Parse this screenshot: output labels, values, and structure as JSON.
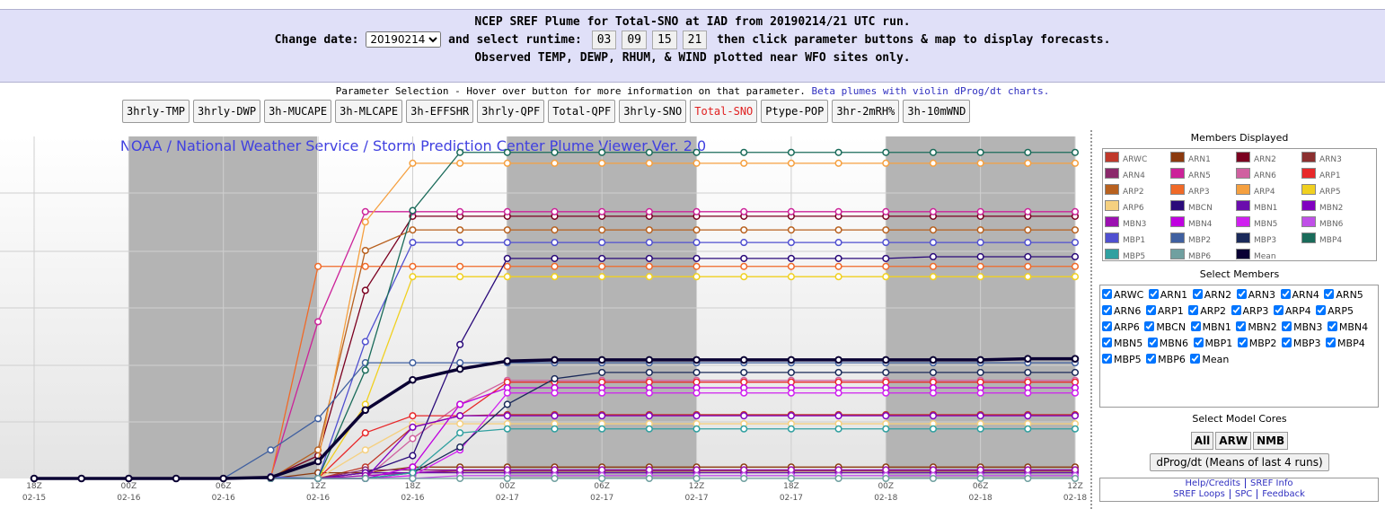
{
  "header": {
    "line1": "NCEP SREF Plume for Total-SNO at IAD from 20190214/21 UTC run.",
    "change_date_label": "Change date:",
    "date": "20190214",
    "select_runtime": "and select runtime:",
    "runtimes": [
      "03",
      "09",
      "15",
      "21"
    ],
    "then": "then click parameter buttons & map to display forecasts.",
    "line3": "Observed TEMP, DEWP, RHUM, & WIND plotted near WFO sites only."
  },
  "params": {
    "caption": "Parameter Selection - Hover over button for more information on that parameter.",
    "beta_link": "Beta plumes with violin dProg/dt charts.",
    "buttons": [
      "3hrly-TMP",
      "3hrly-DWP",
      "3h-MUCAPE",
      "3h-MLCAPE",
      "3h-EFFSHR",
      "3hrly-QPF",
      "Total-QPF",
      "3hrly-SNO",
      "Total-SNO",
      "Ptype-POP",
      "3hr-2mRH%",
      "3h-10mWND"
    ],
    "selected": 8
  },
  "chart_data": {
    "type": "line",
    "title": "NOAA / National Weather Service / Storm Prediction Center Plume Viewer Ver. 2.0",
    "categories": [
      "18Z",
      null,
      "00Z",
      null,
      "06Z",
      null,
      "12Z",
      null,
      "18Z",
      null,
      "00Z",
      null,
      "06Z",
      null,
      "12Z",
      null,
      "18Z",
      null,
      "00Z",
      null,
      "06Z",
      null,
      "12Z"
    ],
    "dates": [
      "02-15",
      null,
      "02-16",
      null,
      "02-16",
      null,
      "02-16",
      null,
      "02-16",
      null,
      "02-17",
      null,
      "02-17",
      null,
      "02-17",
      null,
      "02-17",
      null,
      "02-18",
      null,
      "02-18",
      null,
      "02-18"
    ],
    "ylim": [
      0,
      6
    ],
    "grid": true,
    "series": [
      {
        "name": "ARWC",
        "color": "#c0392b",
        "values": [
          0,
          0,
          0,
          0,
          0,
          0,
          0,
          0.2,
          0.9,
          1.1,
          1.12,
          1.12,
          1.12,
          1.12,
          1.12,
          1.12,
          1.12,
          1.12,
          1.12,
          1.12,
          1.12,
          1.12,
          1.12
        ]
      },
      {
        "name": "ARN1",
        "color": "#8b3a0f",
        "values": [
          0,
          0,
          0,
          0,
          0,
          0,
          0.1,
          0.1,
          0.2,
          0.2,
          0.2,
          0.2,
          0.2,
          0.2,
          0.2,
          0.2,
          0.2,
          0.2,
          0.2,
          0.2,
          0.2,
          0.2,
          0.2
        ]
      },
      {
        "name": "ARN2",
        "color": "#7b0020",
        "values": [
          0,
          0,
          0,
          0,
          0,
          0.02,
          0.4,
          3.3,
          4.6,
          4.6,
          4.6,
          4.6,
          4.6,
          4.6,
          4.6,
          4.6,
          4.6,
          4.6,
          4.6,
          4.6,
          4.6,
          4.6,
          4.6
        ]
      },
      {
        "name": "ARN3",
        "color": "#8b3030",
        "values": [
          0,
          0,
          0,
          0,
          0,
          0,
          0,
          0.1,
          0.1,
          0.13,
          0.13,
          0.13,
          0.13,
          0.13,
          0.13,
          0.13,
          0.13,
          0.13,
          0.13,
          0.13,
          0.13,
          0.13,
          0.13
        ]
      },
      {
        "name": "ARN4",
        "color": "#8b2a6b",
        "values": [
          0,
          0,
          0,
          0,
          0,
          0,
          0,
          0.15,
          0.15,
          0.15,
          0.15,
          0.15,
          0.15,
          0.15,
          0.15,
          0.15,
          0.15,
          0.15,
          0.15,
          0.15,
          0.15,
          0.15,
          0.15
        ]
      },
      {
        "name": "ARN5",
        "color": "#cc2299",
        "values": [
          0,
          0,
          0,
          0,
          0,
          0.03,
          2.75,
          4.68,
          4.68,
          4.68,
          4.68,
          4.68,
          4.68,
          4.68,
          4.68,
          4.68,
          4.68,
          4.68,
          4.68,
          4.68,
          4.68,
          4.68,
          4.68
        ]
      },
      {
        "name": "ARN6",
        "color": "#d060a0",
        "values": [
          0,
          0,
          0,
          0,
          0,
          0,
          0,
          0,
          0.7,
          1.3,
          1.72,
          1.72,
          1.72,
          1.72,
          1.72,
          1.72,
          1.72,
          1.72,
          1.72,
          1.72,
          1.72,
          1.72,
          1.72
        ]
      },
      {
        "name": "ARP1",
        "color": "#e8282a",
        "values": [
          0,
          0,
          0,
          0,
          0,
          0,
          0,
          0.8,
          1.1,
          1.1,
          1.69,
          1.69,
          1.69,
          1.69,
          1.69,
          1.69,
          1.69,
          1.69,
          1.69,
          1.69,
          1.69,
          1.69,
          1.69
        ]
      },
      {
        "name": "ARP2",
        "color": "#b8611f",
        "values": [
          0,
          0,
          0,
          0,
          0,
          0,
          0.5,
          4.0,
          4.36,
          4.36,
          4.36,
          4.36,
          4.36,
          4.36,
          4.36,
          4.36,
          4.36,
          4.36,
          4.36,
          4.36,
          4.36,
          4.36,
          4.36
        ]
      },
      {
        "name": "ARP3",
        "color": "#f06a28",
        "values": [
          0,
          0,
          0,
          0,
          0,
          0,
          3.72,
          3.72,
          3.72,
          3.72,
          3.72,
          3.72,
          3.72,
          3.72,
          3.72,
          3.72,
          3.72,
          3.72,
          3.72,
          3.72,
          3.72,
          3.72,
          3.72
        ]
      },
      {
        "name": "ARP4",
        "color": "#f5a040",
        "values": [
          0,
          0,
          0,
          0,
          0,
          0,
          0.3,
          4.5,
          5.53,
          5.53,
          5.53,
          5.53,
          5.53,
          5.53,
          5.53,
          5.53,
          5.53,
          5.53,
          5.53,
          5.53,
          5.53,
          5.53,
          5.53
        ]
      },
      {
        "name": "ARP5",
        "color": "#f0d020",
        "values": [
          0,
          0,
          0,
          0,
          0,
          0,
          0,
          1.3,
          3.54,
          3.54,
          3.54,
          3.54,
          3.54,
          3.54,
          3.54,
          3.54,
          3.54,
          3.54,
          3.54,
          3.54,
          3.54,
          3.54,
          3.54
        ]
      },
      {
        "name": "ARP6",
        "color": "#f5d080",
        "values": [
          0,
          0,
          0,
          0,
          0,
          0,
          0,
          0.5,
          0.96,
          0.96,
          0.96,
          0.96,
          0.96,
          0.96,
          0.96,
          0.96,
          0.96,
          0.96,
          0.96,
          0.96,
          0.96,
          0.96,
          0.96
        ]
      },
      {
        "name": "MBCN",
        "color": "#2a0a7a",
        "values": [
          0,
          0,
          0,
          0,
          0,
          0,
          0,
          0.1,
          0.4,
          2.35,
          3.86,
          3.86,
          3.86,
          3.86,
          3.86,
          3.86,
          3.86,
          3.86,
          3.86,
          3.89,
          3.89,
          3.89,
          3.89
        ]
      },
      {
        "name": "MBN1",
        "color": "#6a0dad",
        "values": [
          0,
          0,
          0,
          0,
          0,
          0,
          0,
          0.1,
          0.1,
          0.1,
          0.1,
          0.1,
          0.1,
          0.1,
          0.1,
          0.1,
          0.1,
          0.1,
          0.1,
          0.1,
          0.1,
          0.1,
          0.1
        ]
      },
      {
        "name": "MBN2",
        "color": "#8000c0",
        "values": [
          0,
          0,
          0,
          0,
          0,
          0,
          0,
          0,
          0.9,
          1.1,
          1.1,
          1.1,
          1.1,
          1.1,
          1.1,
          1.1,
          1.1,
          1.1,
          1.1,
          1.1,
          1.1,
          1.1,
          1.1
        ]
      },
      {
        "name": "MBN3",
        "color": "#9b10b0",
        "values": [
          0,
          0,
          0,
          0,
          0,
          0,
          0,
          0.05,
          0.1,
          0.15,
          0.15,
          0.15,
          0.15,
          0.15,
          0.15,
          0.15,
          0.15,
          0.15,
          0.15,
          0.15,
          0.15,
          0.15,
          0.15
        ]
      },
      {
        "name": "MBN4",
        "color": "#c000e0",
        "values": [
          0,
          0,
          0,
          0,
          0,
          0,
          0,
          0,
          0.2,
          1.3,
          1.59,
          1.59,
          1.59,
          1.59,
          1.59,
          1.59,
          1.59,
          1.59,
          1.59,
          1.59,
          1.59,
          1.59,
          1.59
        ]
      },
      {
        "name": "MBN5",
        "color": "#d020f0",
        "values": [
          0,
          0,
          0,
          0,
          0,
          0,
          0,
          0,
          0.05,
          0.5,
          1.5,
          1.5,
          1.5,
          1.5,
          1.5,
          1.5,
          1.5,
          1.5,
          1.5,
          1.5,
          1.5,
          1.5,
          1.5
        ]
      },
      {
        "name": "MBN6",
        "color": "#c050e8",
        "values": [
          0,
          0,
          0,
          0,
          0,
          0,
          0,
          0,
          0,
          0.05,
          0.05,
          0.05,
          0.05,
          0.05,
          0.05,
          0.05,
          0.05,
          0.05,
          0.05,
          0.05,
          0.05,
          0.05,
          0.05
        ]
      },
      {
        "name": "MBP1",
        "color": "#5050d0",
        "values": [
          0,
          0,
          0,
          0,
          0,
          0.03,
          0,
          2.4,
          4.14,
          4.14,
          4.14,
          4.14,
          4.14,
          4.14,
          4.14,
          4.14,
          4.14,
          4.14,
          4.14,
          4.14,
          4.14,
          4.14,
          4.14
        ]
      },
      {
        "name": "MBP2",
        "color": "#4060a0",
        "values": [
          0,
          0,
          0,
          0,
          0,
          0.5,
          1.05,
          2.03,
          2.03,
          2.03,
          2.03,
          2.03,
          2.03,
          2.03,
          2.03,
          2.03,
          2.03,
          2.03,
          2.03,
          2.03,
          2.03,
          2.03,
          2.03
        ]
      },
      {
        "name": "MBP3",
        "color": "#1a2a5a",
        "values": [
          0,
          0,
          0,
          0,
          0,
          0,
          0,
          0,
          0.1,
          0.55,
          1.3,
          1.75,
          1.86,
          1.86,
          1.86,
          1.86,
          1.86,
          1.86,
          1.86,
          1.86,
          1.86,
          1.86,
          1.86
        ]
      },
      {
        "name": "MBP4",
        "color": "#1a6b5a",
        "values": [
          0,
          0,
          0,
          0,
          0,
          0,
          0,
          1.9,
          4.7,
          5.72,
          5.72,
          5.72,
          5.72,
          5.72,
          5.72,
          5.72,
          5.72,
          5.72,
          5.72,
          5.72,
          5.72,
          5.72,
          5.72
        ]
      },
      {
        "name": "MBP5",
        "color": "#30a0a0",
        "values": [
          0,
          0,
          0,
          0,
          0,
          0,
          0,
          0,
          0.1,
          0.8,
          0.87,
          0.87,
          0.87,
          0.87,
          0.87,
          0.87,
          0.87,
          0.87,
          0.87,
          0.87,
          0.87,
          0.87,
          0.87
        ]
      },
      {
        "name": "MBP6",
        "color": "#70a0a0",
        "values": [
          0,
          0,
          0,
          0,
          0,
          0,
          0,
          0,
          0,
          0,
          0,
          0,
          0,
          0,
          0,
          0,
          0,
          0,
          0,
          0,
          0,
          0,
          0
        ]
      },
      {
        "name": "Mean",
        "color": "#0a0033",
        "values": [
          0,
          0,
          0,
          0,
          0,
          0.02,
          0.3,
          1.2,
          1.73,
          1.92,
          2.06,
          2.08,
          2.08,
          2.08,
          2.08,
          2.08,
          2.08,
          2.08,
          2.08,
          2.08,
          2.08,
          2.1,
          2.1
        ]
      }
    ]
  },
  "panel": {
    "members_title": "Members Displayed",
    "select_members_title": "Select Members",
    "cores_title": "Select Model Cores",
    "cores": [
      "All",
      "ARW",
      "NMB"
    ],
    "dprog": "dProg/dt (Means of last 4 runs)",
    "links": [
      "Help/Credits",
      "SREF Info",
      "SREF Loops",
      "SPC",
      "Feedback"
    ]
  }
}
